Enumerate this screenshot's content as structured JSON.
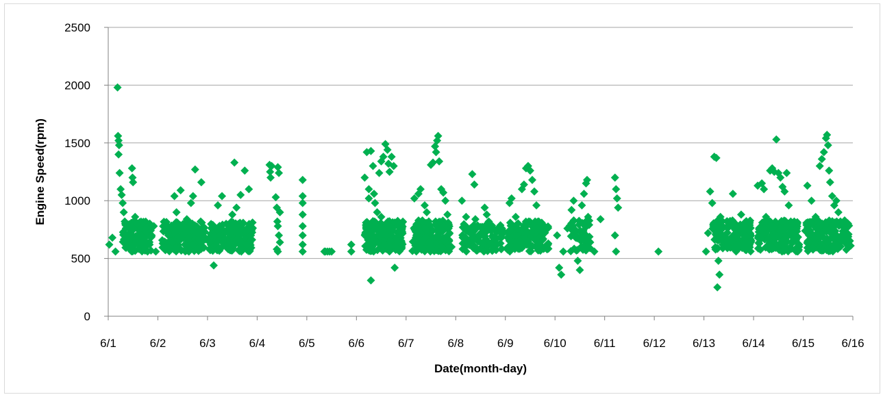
{
  "chart_data": {
    "type": "scatter",
    "title": "",
    "xlabel": "Date(month-day)",
    "ylabel": "Engine Speed(rpm)",
    "ylim": [
      0,
      2500
    ],
    "yticks": [
      0,
      500,
      1000,
      1500,
      2000,
      2500
    ],
    "xlim": [
      "6/1",
      "6/16"
    ],
    "xticks": [
      "6/1",
      "6/2",
      "6/3",
      "6/4",
      "6/5",
      "6/6",
      "6/7",
      "6/8",
      "6/9",
      "6/10",
      "6/11",
      "6/12",
      "6/13",
      "6/14",
      "6/15",
      "6/16"
    ],
    "grid": true,
    "legend": "none",
    "marker": "diamond",
    "series": [
      {
        "color": "#00b050",
        "points": [
          [
            "6/1 00:30",
            620
          ],
          [
            "6/1 02:00",
            680
          ],
          [
            "6/1 03:30",
            560
          ],
          [
            "6/1 04:30",
            1980
          ],
          [
            "6/1 04:45",
            1560
          ],
          [
            "6/1 05:00",
            1520
          ],
          [
            "6/1 05:15",
            1480
          ],
          [
            "6/1 05:00",
            1400
          ],
          [
            "6/1 05:30",
            1240
          ],
          [
            "6/1 06:00",
            1100
          ],
          [
            "6/1 06:30",
            1050
          ],
          [
            "6/1 07:00",
            980
          ],
          [
            "6/1 07:30",
            900
          ],
          [
            "6/1 08:00",
            820
          ],
          [
            "6/1 08:30",
            760
          ],
          [
            "6/1 09:00",
            700
          ],
          [
            "6/1 10:00",
            650
          ],
          [
            "6/1 11:00",
            600
          ],
          [
            "6/1 11:30",
            1280
          ],
          [
            "6/1 11:45",
            1200
          ],
          [
            "6/1 12:00",
            1160
          ],
          [
            "6/1 13:00",
            860
          ],
          [
            "6/1 14:00",
            800
          ],
          [
            "6/1 15:00",
            740
          ],
          [
            "6/1 16:00",
            700
          ],
          [
            "6/1 17:00",
            640
          ],
          [
            "6/1 18:00",
            580
          ],
          [
            "6/1 19:00",
            560
          ],
          [
            "6/1 20:00",
            620
          ],
          [
            "6/1 21:00",
            700
          ],
          [
            "6/1 22:00",
            780
          ],
          [
            "6/1 23:00",
            560
          ],
          [
            "6/2 03:00",
            600
          ],
          [
            "6/2 05:00",
            720
          ],
          [
            "6/2 07:00",
            640
          ],
          [
            "6/2 08:00",
            1040
          ],
          [
            "6/2 09:00",
            900
          ],
          [
            "6/2 10:00",
            780
          ],
          [
            "6/2 11:00",
            1090
          ],
          [
            "6/2 12:00",
            700
          ],
          [
            "6/2 13:00",
            620
          ],
          [
            "6/2 14:00",
            840
          ],
          [
            "6/2 15:00",
            560
          ],
          [
            "6/2 16:00",
            980
          ],
          [
            "6/2 17:00",
            1040
          ],
          [
            "6/2 18:00",
            1270
          ],
          [
            "6/2 19:00",
            720
          ],
          [
            "6/2 20:00",
            660
          ],
          [
            "6/2 21:00",
            1160
          ],
          [
            "6/2 22:00",
            600
          ],
          [
            "6/3 01:00",
            640
          ],
          [
            "6/3 03:00",
            440
          ],
          [
            "6/3 04:00",
            760
          ],
          [
            "6/3 05:00",
            960
          ],
          [
            "6/3 06:00",
            700
          ],
          [
            "6/3 07:00",
            1040
          ],
          [
            "6/3 08:00",
            620
          ],
          [
            "6/3 09:00",
            800
          ],
          [
            "6/3 10:00",
            580
          ],
          [
            "6/3 11:00",
            720
          ],
          [
            "6/3 12:00",
            880
          ],
          [
            "6/3 13:00",
            1330
          ],
          [
            "6/3 14:00",
            940
          ],
          [
            "6/3 15:00",
            660
          ],
          [
            "6/3 16:00",
            1050
          ],
          [
            "6/3 17:00",
            760
          ],
          [
            "6/3 18:00",
            1260
          ],
          [
            "6/3 19:00",
            620
          ],
          [
            "6/3 20:00",
            1100
          ],
          [
            "6/3 21:00",
            700
          ],
          [
            "6/4 06:00",
            1310
          ],
          [
            "6/4 06:15",
            1250
          ],
          [
            "6/4 06:30",
            1200
          ],
          [
            "6/4 07:00",
            1300
          ],
          [
            "6/4 10:00",
            1290
          ],
          [
            "6/4 10:30",
            1240
          ],
          [
            "6/4 09:00",
            1030
          ],
          [
            "6/4 09:30",
            940
          ],
          [
            "6/4 09:45",
            820
          ],
          [
            "6/4 10:00",
            780
          ],
          [
            "6/4 10:30",
            700
          ],
          [
            "6/4 11:00",
            640
          ],
          [
            "6/4 09:30",
            580
          ],
          [
            "6/4 10:00",
            560
          ],
          [
            "6/4 11:00",
            900
          ],
          [
            "6/4 22:00",
            1180
          ],
          [
            "6/4 22:00",
            1040
          ],
          [
            "6/4 22:00",
            980
          ],
          [
            "6/4 22:00",
            880
          ],
          [
            "6/4 22:00",
            780
          ],
          [
            "6/4 22:00",
            700
          ],
          [
            "6/4 22:00",
            620
          ],
          [
            "6/4 22:00",
            560
          ],
          [
            "6/5 09:00",
            560
          ],
          [
            "6/5 10:00",
            560
          ],
          [
            "6/5 11:00",
            560
          ],
          [
            "6/5 12:00",
            560
          ],
          [
            "6/5 08:30",
            560
          ],
          [
            "6/5 21:30",
            620
          ],
          [
            "6/5 21:30",
            560
          ],
          [
            "6/6 04:00",
            1200
          ],
          [
            "6/6 05:00",
            1420
          ],
          [
            "6/6 06:00",
            1100
          ],
          [
            "6/6 07:00",
            1430
          ],
          [
            "6/6 08:00",
            1300
          ],
          [
            "6/6 08:30",
            1060
          ],
          [
            "6/6 09:00",
            980
          ],
          [
            "6/6 07:00",
            310
          ],
          [
            "6/6 10:00",
            900
          ],
          [
            "6/6 11:00",
            1240
          ],
          [
            "6/6 12:00",
            1340
          ],
          [
            "6/6 13:00",
            1380
          ],
          [
            "6/6 14:00",
            1490
          ],
          [
            "6/6 15:00",
            1440
          ],
          [
            "6/6 15:30",
            1320
          ],
          [
            "6/6 16:00",
            1250
          ],
          [
            "6/6 17:00",
            1380
          ],
          [
            "6/6 18:00",
            1300
          ],
          [
            "6/6 18:30",
            420
          ],
          [
            "6/6 20:00",
            780
          ],
          [
            "6/6 21:00",
            700
          ],
          [
            "6/6 22:00",
            620
          ],
          [
            "6/6 06:00",
            1020
          ],
          [
            "6/6 12:00",
            860
          ],
          [
            "6/7 04:00",
            1020
          ],
          [
            "6/7 06:00",
            1060
          ],
          [
            "6/7 07:00",
            1100
          ],
          [
            "6/7 09:00",
            960
          ],
          [
            "6/7 10:00",
            900
          ],
          [
            "6/7 12:00",
            1310
          ],
          [
            "6/7 13:00",
            1330
          ],
          [
            "6/7 14:00",
            1470
          ],
          [
            "6/7 15:00",
            1520
          ],
          [
            "6/7 15:30",
            1560
          ],
          [
            "6/7 14:30",
            1420
          ],
          [
            "6/7 16:00",
            1340
          ],
          [
            "6/7 17:00",
            1100
          ],
          [
            "6/7 18:00",
            1070
          ],
          [
            "6/7 19:00",
            1000
          ],
          [
            "6/7 20:00",
            880
          ],
          [
            "6/7 21:00",
            720
          ],
          [
            "6/7 22:00",
            600
          ],
          [
            "6/8 03:00",
            1000
          ],
          [
            "6/8 05:00",
            860
          ],
          [
            "6/8 07:00",
            760
          ],
          [
            "6/8 08:00",
            1230
          ],
          [
            "6/8 09:00",
            1140
          ],
          [
            "6/8 09:30",
            840
          ],
          [
            "6/8 10:00",
            760
          ],
          [
            "6/8 11:00",
            700
          ],
          [
            "6/8 12:00",
            640
          ],
          [
            "6/8 14:00",
            940
          ],
          [
            "6/8 15:00",
            880
          ],
          [
            "6/8 16:00",
            820
          ],
          [
            "6/8 17:00",
            740
          ],
          [
            "6/8 18:00",
            680
          ],
          [
            "6/8 20:00",
            620
          ],
          [
            "6/8 22:00",
            580
          ],
          [
            "6/9 02:00",
            980
          ],
          [
            "6/9 03:00",
            1020
          ],
          [
            "6/9 05:00",
            860
          ],
          [
            "6/9 06:00",
            760
          ],
          [
            "6/9 08:00",
            1100
          ],
          [
            "6/9 09:00",
            1140
          ],
          [
            "6/9 10:00",
            1280
          ],
          [
            "6/9 11:00",
            1300
          ],
          [
            "6/9 12:00",
            1260
          ],
          [
            "6/9 13:00",
            1180
          ],
          [
            "6/9 14:00",
            1080
          ],
          [
            "6/9 15:00",
            960
          ],
          [
            "6/9 16:00",
            820
          ],
          [
            "6/9 17:00",
            740
          ],
          [
            "6/9 18:00",
            660
          ],
          [
            "6/9 20:00",
            600
          ],
          [
            "6/10 01:00",
            700
          ],
          [
            "6/10 02:00",
            420
          ],
          [
            "6/10 03:00",
            360
          ],
          [
            "6/10 04:00",
            560
          ],
          [
            "6/10 06:00",
            760
          ],
          [
            "6/10 08:00",
            920
          ],
          [
            "6/10 09:00",
            1000
          ],
          [
            "6/10 10:00",
            680
          ],
          [
            "6/10 11:00",
            480
          ],
          [
            "6/10 12:00",
            400
          ],
          [
            "6/10 13:00",
            960
          ],
          [
            "6/10 14:00",
            1060
          ],
          [
            "6/10 15:00",
            1150
          ],
          [
            "6/10 15:30",
            1180
          ],
          [
            "6/10 16:00",
            860
          ],
          [
            "6/10 17:00",
            640
          ],
          [
            "6/10 19:00",
            560
          ],
          [
            "6/10 22:00",
            840
          ],
          [
            "6/11 05:00",
            1200
          ],
          [
            "6/11 05:30",
            1100
          ],
          [
            "6/11 06:00",
            1020
          ],
          [
            "6/11 06:30",
            940
          ],
          [
            "6/11 05:00",
            700
          ],
          [
            "6/11 05:30",
            560
          ],
          [
            "6/12 02:00",
            560
          ],
          [
            "6/13 01:00",
            560
          ],
          [
            "6/13 02:00",
            720
          ],
          [
            "6/13 03:00",
            1080
          ],
          [
            "6/13 04:00",
            980
          ],
          [
            "6/13 05:00",
            1380
          ],
          [
            "6/13 06:00",
            1370
          ],
          [
            "6/13 07:00",
            480
          ],
          [
            "6/13 07:30",
            360
          ],
          [
            "6/13 06:30",
            250
          ],
          [
            "6/13 08:00",
            860
          ],
          [
            "6/13 10:00",
            700
          ],
          [
            "6/13 12:00",
            640
          ],
          [
            "6/13 14:00",
            1060
          ],
          [
            "6/13 16:00",
            780
          ],
          [
            "6/13 18:00",
            880
          ],
          [
            "6/13 20:00",
            600
          ],
          [
            "6/13 22:00",
            820
          ],
          [
            "6/14 02:00",
            1130
          ],
          [
            "6/14 04:00",
            1150
          ],
          [
            "6/14 05:00",
            1100
          ],
          [
            "6/14 06:00",
            860
          ],
          [
            "6/14 08:00",
            1260
          ],
          [
            "6/14 09:00",
            1280
          ],
          [
            "6/14 10:00",
            1250
          ],
          [
            "6/14 11:00",
            1530
          ],
          [
            "6/14 12:00",
            1240
          ],
          [
            "6/14 13:00",
            1200
          ],
          [
            "6/14 14:00",
            1120
          ],
          [
            "6/14 15:00",
            1080
          ],
          [
            "6/14 16:00",
            1240
          ],
          [
            "6/14 17:00",
            960
          ],
          [
            "6/14 18:00",
            820
          ],
          [
            "6/14 20:00",
            700
          ],
          [
            "6/14 22:00",
            620
          ],
          [
            "6/15 02:00",
            1130
          ],
          [
            "6/15 04:00",
            1000
          ],
          [
            "6/15 06:00",
            860
          ],
          [
            "6/15 08:00",
            1300
          ],
          [
            "6/15 09:00",
            1360
          ],
          [
            "6/15 10:00",
            1420
          ],
          [
            "6/15 11:00",
            1540
          ],
          [
            "6/15 11:30",
            1570
          ],
          [
            "6/15 12:00",
            1480
          ],
          [
            "6/15 12:30",
            1260
          ],
          [
            "6/15 13:00",
            1160
          ],
          [
            "6/15 14:00",
            1040
          ],
          [
            "6/15 15:00",
            960
          ],
          [
            "6/15 16:00",
            1000
          ],
          [
            "6/15 17:00",
            900
          ],
          [
            "6/15 18:00",
            820
          ],
          [
            "6/15 20:00",
            700
          ],
          [
            "6/15 22:00",
            600
          ]
        ],
        "dense_blocks": [
          {
            "start": "6/1 07:00",
            "end": "6/1 21:00",
            "ymin": 560,
            "ymax": 820,
            "n": 130
          },
          {
            "start": "6/2 02:00",
            "end": "6/2 23:00",
            "ymin": 560,
            "ymax": 820,
            "n": 160
          },
          {
            "start": "6/3 01:00",
            "end": "6/3 22:00",
            "ymin": 560,
            "ymax": 820,
            "n": 160
          },
          {
            "start": "6/6 04:00",
            "end": "6/6 23:00",
            "ymin": 560,
            "ymax": 830,
            "n": 200
          },
          {
            "start": "6/7 03:00",
            "end": "6/7 21:00",
            "ymin": 560,
            "ymax": 830,
            "n": 180
          },
          {
            "start": "6/8 03:00",
            "end": "6/8 23:00",
            "ymin": 560,
            "ymax": 800,
            "n": 110
          },
          {
            "start": "6/9 01:00",
            "end": "6/9 21:00",
            "ymin": 560,
            "ymax": 820,
            "n": 150
          },
          {
            "start": "6/10 07:00",
            "end": "6/10 17:00",
            "ymin": 560,
            "ymax": 840,
            "n": 50
          },
          {
            "start": "6/13 04:00",
            "end": "6/13 23:00",
            "ymin": 560,
            "ymax": 830,
            "n": 160
          },
          {
            "start": "6/14 02:00",
            "end": "6/14 22:00",
            "ymin": 560,
            "ymax": 830,
            "n": 180
          },
          {
            "start": "6/15 01:00",
            "end": "6/15 23:00",
            "ymin": 560,
            "ymax": 830,
            "n": 180
          }
        ]
      }
    ]
  }
}
